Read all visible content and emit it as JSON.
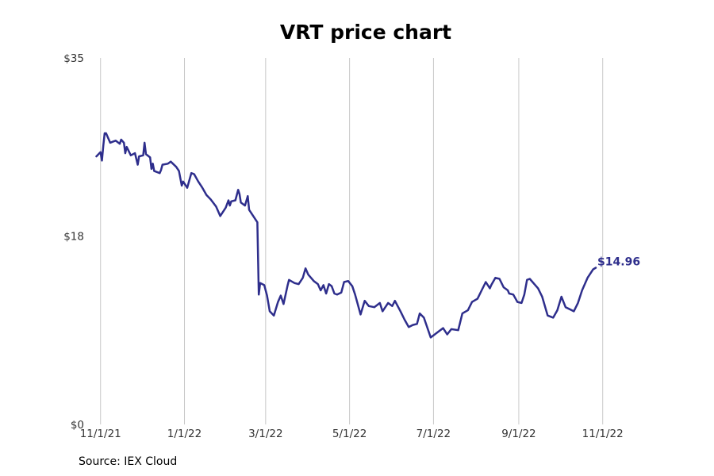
{
  "chart_data": {
    "type": "line",
    "title": "VRT price chart",
    "xlabel": "",
    "ylabel": "",
    "x_axis": "date",
    "xlim": [
      "2021-10-31",
      "2022-11-30"
    ],
    "ylim": [
      0,
      35
    ],
    "y_ticks": [
      0,
      18,
      35
    ],
    "y_tick_labels": [
      "$0",
      "$18",
      "$35"
    ],
    "x_ticks": [
      "2021-11-01",
      "2022-01-01",
      "2022-03-01",
      "2022-05-01",
      "2022-07-01",
      "2022-09-01",
      "2022-11-01"
    ],
    "x_tick_labels": [
      "11/1/21",
      "1/1/22",
      "3/1/22",
      "5/1/22",
      "7/1/22",
      "9/1/22",
      "11/1/22"
    ],
    "grid": "vertical",
    "line_color": "#2e2e8c",
    "end_label": "$14.96",
    "series": [
      {
        "values": [
          [
            "2021-10-29",
            25.6
          ],
          [
            "2021-11-01",
            26.0
          ],
          [
            "2021-11-02",
            25.2
          ],
          [
            "2021-11-03",
            26.6
          ],
          [
            "2021-11-04",
            27.8
          ],
          [
            "2021-11-05",
            27.8
          ],
          [
            "2021-11-08",
            26.9
          ],
          [
            "2021-11-10",
            27.0
          ],
          [
            "2021-11-12",
            27.1
          ],
          [
            "2021-11-15",
            26.8
          ],
          [
            "2021-11-16",
            27.2
          ],
          [
            "2021-11-18",
            26.9
          ],
          [
            "2021-11-19",
            25.9
          ],
          [
            "2021-11-20",
            26.5
          ],
          [
            "2021-11-23",
            25.7
          ],
          [
            "2021-11-26",
            25.9
          ],
          [
            "2021-11-28",
            24.8
          ],
          [
            "2021-11-29",
            25.6
          ],
          [
            "2021-12-02",
            25.7
          ],
          [
            "2021-12-03",
            26.9
          ],
          [
            "2021-12-04",
            25.8
          ],
          [
            "2021-12-07",
            25.5
          ],
          [
            "2021-12-08",
            24.4
          ],
          [
            "2021-12-09",
            24.9
          ],
          [
            "2021-12-10",
            24.2
          ],
          [
            "2021-12-14",
            24.0
          ],
          [
            "2021-12-15",
            24.3
          ],
          [
            "2021-12-16",
            24.8
          ],
          [
            "2021-12-20",
            24.9
          ],
          [
            "2021-12-22",
            25.1
          ],
          [
            "2021-12-26",
            24.6
          ],
          [
            "2021-12-28",
            24.2
          ],
          [
            "2021-12-30",
            22.8
          ],
          [
            "2021-12-31",
            23.2
          ],
          [
            "2022-01-03",
            22.6
          ],
          [
            "2022-01-06",
            24.0
          ],
          [
            "2022-01-08",
            23.9
          ],
          [
            "2022-01-11",
            23.2
          ],
          [
            "2022-01-14",
            22.6
          ],
          [
            "2022-01-17",
            21.9
          ],
          [
            "2022-01-20",
            21.5
          ],
          [
            "2022-01-24",
            20.8
          ],
          [
            "2022-01-27",
            19.9
          ],
          [
            "2022-01-31",
            20.7
          ],
          [
            "2022-02-02",
            21.4
          ],
          [
            "2022-02-03",
            20.9
          ],
          [
            "2022-02-04",
            21.3
          ],
          [
            "2022-02-07",
            21.4
          ],
          [
            "2022-02-09",
            22.4
          ],
          [
            "2022-02-10",
            22.0
          ],
          [
            "2022-02-11",
            21.2
          ],
          [
            "2022-02-14",
            20.9
          ],
          [
            "2022-02-16",
            21.8
          ],
          [
            "2022-02-17",
            20.5
          ],
          [
            "2022-02-23",
            19.3
          ],
          [
            "2022-02-24",
            12.4
          ],
          [
            "2022-02-25",
            13.5
          ],
          [
            "2022-02-28",
            13.3
          ],
          [
            "2022-03-02",
            12.3
          ],
          [
            "2022-03-04",
            10.8
          ],
          [
            "2022-03-07",
            10.4
          ],
          [
            "2022-03-10",
            11.7
          ],
          [
            "2022-03-12",
            12.3
          ],
          [
            "2022-03-14",
            11.5
          ],
          [
            "2022-03-17",
            13.3
          ],
          [
            "2022-03-18",
            13.8
          ],
          [
            "2022-03-22",
            13.5
          ],
          [
            "2022-03-25",
            13.4
          ],
          [
            "2022-03-28",
            14.0
          ],
          [
            "2022-03-30",
            14.9
          ],
          [
            "2022-04-01",
            14.3
          ],
          [
            "2022-04-05",
            13.7
          ],
          [
            "2022-04-08",
            13.4
          ],
          [
            "2022-04-10",
            12.8
          ],
          [
            "2022-04-12",
            13.3
          ],
          [
            "2022-04-14",
            12.5
          ],
          [
            "2022-04-16",
            13.4
          ],
          [
            "2022-04-18",
            13.2
          ],
          [
            "2022-04-20",
            12.5
          ],
          [
            "2022-04-22",
            12.4
          ],
          [
            "2022-04-25",
            12.6
          ],
          [
            "2022-04-27",
            13.6
          ],
          [
            "2022-04-30",
            13.7
          ],
          [
            "2022-05-03",
            13.2
          ],
          [
            "2022-05-05",
            12.4
          ],
          [
            "2022-05-09",
            10.5
          ],
          [
            "2022-05-12",
            11.8
          ],
          [
            "2022-05-15",
            11.3
          ],
          [
            "2022-05-19",
            11.2
          ],
          [
            "2022-05-23",
            11.6
          ],
          [
            "2022-05-25",
            10.8
          ],
          [
            "2022-05-29",
            11.6
          ],
          [
            "2022-06-01",
            11.3
          ],
          [
            "2022-06-03",
            11.8
          ],
          [
            "2022-06-07",
            10.8
          ],
          [
            "2022-06-10",
            10.0
          ],
          [
            "2022-06-13",
            9.3
          ],
          [
            "2022-06-16",
            9.5
          ],
          [
            "2022-06-19",
            9.6
          ],
          [
            "2022-06-21",
            10.6
          ],
          [
            "2022-06-24",
            10.2
          ],
          [
            "2022-06-29",
            8.3
          ],
          [
            "2022-07-01",
            8.5
          ],
          [
            "2022-07-05",
            8.9
          ],
          [
            "2022-07-08",
            9.2
          ],
          [
            "2022-07-11",
            8.6
          ],
          [
            "2022-07-14",
            9.1
          ],
          [
            "2022-07-19",
            9.0
          ],
          [
            "2022-07-22",
            10.6
          ],
          [
            "2022-07-26",
            10.9
          ],
          [
            "2022-07-29",
            11.7
          ],
          [
            "2022-08-02",
            12.0
          ],
          [
            "2022-08-05",
            12.8
          ],
          [
            "2022-08-08",
            13.6
          ],
          [
            "2022-08-11",
            13.0
          ],
          [
            "2022-08-12",
            13.3
          ],
          [
            "2022-08-15",
            14.0
          ],
          [
            "2022-08-18",
            13.9
          ],
          [
            "2022-08-21",
            13.1
          ],
          [
            "2022-08-24",
            12.8
          ],
          [
            "2022-08-25",
            12.5
          ],
          [
            "2022-08-28",
            12.4
          ],
          [
            "2022-08-31",
            11.7
          ],
          [
            "2022-09-03",
            11.6
          ],
          [
            "2022-09-05",
            12.4
          ],
          [
            "2022-09-07",
            13.8
          ],
          [
            "2022-09-09",
            13.9
          ],
          [
            "2022-09-13",
            13.3
          ],
          [
            "2022-09-15",
            13.0
          ],
          [
            "2022-09-18",
            12.2
          ],
          [
            "2022-09-22",
            10.4
          ],
          [
            "2022-09-26",
            10.2
          ],
          [
            "2022-09-29",
            10.9
          ],
          [
            "2022-10-02",
            12.2
          ],
          [
            "2022-10-05",
            11.2
          ],
          [
            "2022-10-08",
            11.0
          ],
          [
            "2022-10-11",
            10.8
          ],
          [
            "2022-10-14",
            11.6
          ],
          [
            "2022-10-17",
            12.8
          ],
          [
            "2022-10-21",
            14.0
          ],
          [
            "2022-10-25",
            14.8
          ],
          [
            "2022-10-27",
            14.96
          ]
        ]
      }
    ]
  },
  "source_note": "Source: IEX Cloud"
}
